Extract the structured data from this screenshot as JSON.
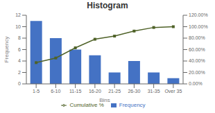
{
  "chart_data": {
    "type": "bar",
    "title": "Histogram",
    "xlabel": "Bins",
    "ylabel": "Frequency",
    "categories": [
      "1-5",
      "6-10",
      "11-15",
      "16-20",
      "21-25",
      "26-30",
      "31-35",
      "Over 35"
    ],
    "series": [
      {
        "name": "Frequency",
        "type": "bar",
        "color": "#4472C4",
        "values": [
          11,
          8,
          6,
          5,
          2,
          4,
          2,
          1
        ]
      },
      {
        "name": "Cumulative %",
        "type": "line",
        "axis": "y2",
        "color": "#4F6228",
        "marker": "square",
        "values": [
          0.3718,
          0.4521,
          0.6301,
          0.7808,
          0.8356,
          0.9233,
          0.9863,
          1.0
        ]
      }
    ],
    "ylim": [
      0,
      12
    ],
    "yticks": [
      0,
      2,
      4,
      6,
      8,
      10,
      12
    ],
    "y2lim": [
      0.0,
      1.2
    ],
    "y2ticks": [
      {
        "value": 0.0,
        "label": "0.00%"
      },
      {
        "value": 0.2,
        "label": "20.00%"
      },
      {
        "value": 0.4,
        "label": "40.00%"
      },
      {
        "value": 0.6,
        "label": "60.00%"
      },
      {
        "value": 0.8,
        "label": "80.00%"
      },
      {
        "value": 1.0,
        "label": "100.00%"
      },
      {
        "value": 1.2,
        "label": "120.00%"
      }
    ],
    "grid": false,
    "legend": "bottom"
  }
}
